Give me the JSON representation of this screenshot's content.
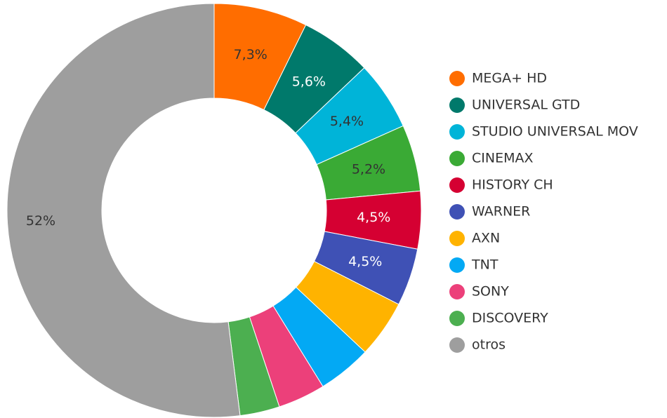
{
  "chart_data": {
    "type": "donut",
    "categories": [
      "MEGA+ HD",
      "UNIVERSAL GTD",
      "STUDIO UNIVERSAL MOV",
      "CINEMAX",
      "HISTORY CH",
      "WARNER",
      "AXN",
      "TNT",
      "SONY",
      "DISCOVERY",
      "otros"
    ],
    "values": [
      7.3,
      5.6,
      5.4,
      5.2,
      4.5,
      4.5,
      4.5,
      4.2,
      3.7,
      3.1,
      52
    ],
    "value_labels": [
      "7,3%",
      "5,6%",
      "5,4%",
      "5,2%",
      "4,5%",
      "4,5%",
      null,
      null,
      null,
      null,
      "52%"
    ],
    "colors": [
      "#ff6d00",
      "#00796b",
      "#00b4d8",
      "#3aaa35",
      "#d50032",
      "#3f51b5",
      "#ffb300",
      "#03a9f4",
      "#ec407a",
      "#4caf50",
      "#9e9e9e"
    ],
    "legend": "right"
  }
}
